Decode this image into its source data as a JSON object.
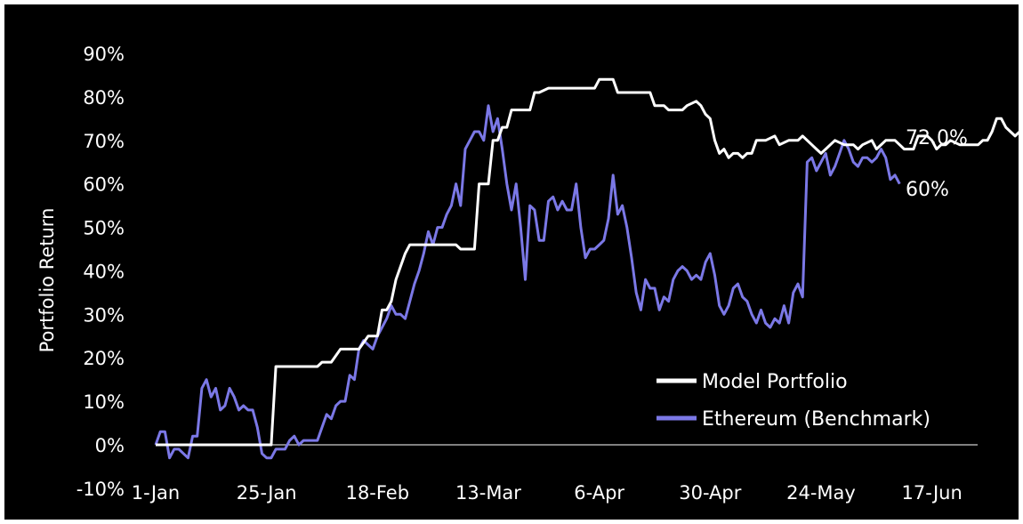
{
  "chart_data": {
    "type": "line",
    "title": "",
    "xlabel": "",
    "ylabel": "Portfolio Return",
    "ylim": [
      -10,
      90
    ],
    "y_ticks": [
      "-10%",
      "0%",
      "10%",
      "20%",
      "30%",
      "40%",
      "50%",
      "60%",
      "70%",
      "80%",
      "90%"
    ],
    "x_ticks": [
      "1-Jan",
      "25-Jan",
      "18-Feb",
      "13-Mar",
      "6-Apr",
      "30-Apr",
      "24-May",
      "17-Jun"
    ],
    "grid": false,
    "legend": "bottom-right",
    "end_labels": {
      "model": "72.0%",
      "ethereum": "60%"
    },
    "colors": {
      "background": "#000000",
      "model": "#ffffff",
      "ethereum": "#7b78e6",
      "axis": "#ffffff"
    },
    "series": [
      {
        "name": "Model Portfolio",
        "points": [
          [
            0,
            0
          ],
          [
            20,
            0
          ],
          [
            25,
            0
          ],
          [
            26,
            18
          ],
          [
            30,
            18
          ],
          [
            35,
            18
          ],
          [
            36,
            19
          ],
          [
            38,
            19
          ],
          [
            40,
            22
          ],
          [
            44,
            22
          ],
          [
            46,
            25
          ],
          [
            48,
            25
          ],
          [
            49,
            31
          ],
          [
            50,
            31
          ],
          [
            51,
            33
          ],
          [
            52,
            38
          ],
          [
            54,
            44
          ],
          [
            55,
            46
          ],
          [
            58,
            46
          ],
          [
            62,
            46
          ],
          [
            65,
            46
          ],
          [
            66,
            45
          ],
          [
            69,
            45
          ],
          [
            70,
            60
          ],
          [
            72,
            60
          ],
          [
            73,
            70
          ],
          [
            74,
            70
          ],
          [
            75,
            73
          ],
          [
            76,
            73
          ],
          [
            77,
            77
          ],
          [
            78,
            77
          ],
          [
            81,
            77
          ],
          [
            82,
            81
          ],
          [
            83,
            81
          ],
          [
            85,
            82
          ],
          [
            95,
            82
          ],
          [
            96,
            84
          ],
          [
            99,
            84
          ],
          [
            100,
            81
          ],
          [
            107,
            81
          ],
          [
            108,
            78
          ],
          [
            110,
            78
          ],
          [
            111,
            77
          ],
          [
            114,
            77
          ],
          [
            115,
            78
          ],
          [
            117,
            79
          ],
          [
            118,
            78
          ],
          [
            119,
            76
          ],
          [
            120,
            75
          ],
          [
            121,
            70
          ],
          [
            122,
            67
          ],
          [
            123,
            68
          ],
          [
            124,
            66
          ],
          [
            125,
            67
          ],
          [
            126,
            67
          ],
          [
            127,
            66
          ],
          [
            128,
            67
          ],
          [
            129,
            67
          ],
          [
            130,
            70
          ],
          [
            132,
            70
          ],
          [
            134,
            71
          ],
          [
            135,
            69
          ],
          [
            137,
            70
          ],
          [
            139,
            70
          ],
          [
            140,
            71
          ],
          [
            142,
            69
          ],
          [
            143,
            68
          ],
          [
            144,
            67
          ],
          [
            145,
            68
          ],
          [
            146,
            69
          ],
          [
            147,
            70
          ],
          [
            149,
            69
          ],
          [
            151,
            69
          ],
          [
            152,
            68
          ],
          [
            153,
            69
          ],
          [
            155,
            70
          ],
          [
            156,
            68
          ],
          [
            158,
            70
          ],
          [
            160,
            70
          ],
          [
            161,
            69
          ],
          [
            162,
            68
          ],
          [
            164,
            68
          ],
          [
            165,
            71
          ],
          [
            167,
            71
          ],
          [
            168,
            70
          ],
          [
            169,
            68
          ],
          [
            170,
            69
          ],
          [
            171,
            69
          ],
          [
            172,
            70
          ],
          [
            174,
            69
          ],
          [
            176,
            69
          ],
          [
            178,
            69
          ],
          [
            179,
            70
          ],
          [
            180,
            70
          ],
          [
            181,
            72
          ],
          [
            182,
            75
          ],
          [
            183,
            75
          ],
          [
            184,
            73
          ],
          [
            186,
            71
          ],
          [
            187,
            72
          ],
          [
            188,
            72
          ]
        ]
      },
      {
        "name": "Ethereum (Benchmark)",
        "points": [
          [
            0,
            0
          ],
          [
            1,
            3
          ],
          [
            2,
            3
          ],
          [
            3,
            -3
          ],
          [
            4,
            -1
          ],
          [
            5,
            -1
          ],
          [
            6,
            -2
          ],
          [
            7,
            -3
          ],
          [
            8,
            2
          ],
          [
            9,
            2
          ],
          [
            10,
            13
          ],
          [
            11,
            15
          ],
          [
            12,
            11
          ],
          [
            13,
            13
          ],
          [
            14,
            8
          ],
          [
            15,
            9
          ],
          [
            16,
            13
          ],
          [
            17,
            11
          ],
          [
            18,
            8
          ],
          [
            19,
            9
          ],
          [
            20,
            8
          ],
          [
            21,
            8
          ],
          [
            22,
            4
          ],
          [
            23,
            -2
          ],
          [
            24,
            -3
          ],
          [
            25,
            -3
          ],
          [
            26,
            -1
          ],
          [
            27,
            -1
          ],
          [
            28,
            -1
          ],
          [
            29,
            1
          ],
          [
            30,
            2
          ],
          [
            31,
            0
          ],
          [
            32,
            1
          ],
          [
            33,
            1
          ],
          [
            34,
            1
          ],
          [
            35,
            1
          ],
          [
            36,
            4
          ],
          [
            37,
            7
          ],
          [
            38,
            6
          ],
          [
            39,
            9
          ],
          [
            40,
            10
          ],
          [
            41,
            10
          ],
          [
            42,
            16
          ],
          [
            43,
            15
          ],
          [
            44,
            22
          ],
          [
            45,
            24
          ],
          [
            46,
            23
          ],
          [
            47,
            22
          ],
          [
            48,
            25
          ],
          [
            49,
            27
          ],
          [
            50,
            29
          ],
          [
            51,
            32
          ],
          [
            52,
            30
          ],
          [
            53,
            30
          ],
          [
            54,
            29
          ],
          [
            55,
            33
          ],
          [
            56,
            37
          ],
          [
            57,
            40
          ],
          [
            58,
            44
          ],
          [
            59,
            49
          ],
          [
            60,
            46
          ],
          [
            61,
            50
          ],
          [
            62,
            50
          ],
          [
            63,
            53
          ],
          [
            64,
            55
          ],
          [
            65,
            60
          ],
          [
            66,
            55
          ],
          [
            67,
            68
          ],
          [
            68,
            70
          ],
          [
            69,
            72
          ],
          [
            70,
            72
          ],
          [
            71,
            70
          ],
          [
            72,
            78
          ],
          [
            73,
            72
          ],
          [
            74,
            75
          ],
          [
            75,
            68
          ],
          [
            76,
            60
          ],
          [
            77,
            54
          ],
          [
            78,
            60
          ],
          [
            79,
            50
          ],
          [
            80,
            38
          ],
          [
            81,
            55
          ],
          [
            82,
            54
          ],
          [
            83,
            47
          ],
          [
            84,
            47
          ],
          [
            85,
            56
          ],
          [
            86,
            57
          ],
          [
            87,
            54
          ],
          [
            88,
            56
          ],
          [
            89,
            54
          ],
          [
            90,
            54
          ],
          [
            91,
            60
          ],
          [
            92,
            50
          ],
          [
            93,
            43
          ],
          [
            94,
            45
          ],
          [
            95,
            45
          ],
          [
            96,
            46
          ],
          [
            97,
            47
          ],
          [
            98,
            52
          ],
          [
            99,
            62
          ],
          [
            100,
            53
          ],
          [
            101,
            55
          ],
          [
            102,
            50
          ],
          [
            103,
            43
          ],
          [
            104,
            35
          ],
          [
            105,
            31
          ],
          [
            106,
            38
          ],
          [
            107,
            36
          ],
          [
            108,
            36
          ],
          [
            109,
            31
          ],
          [
            110,
            34
          ],
          [
            111,
            33
          ],
          [
            112,
            38
          ],
          [
            113,
            40
          ],
          [
            114,
            41
          ],
          [
            115,
            40
          ],
          [
            116,
            38
          ],
          [
            117,
            39
          ],
          [
            118,
            38
          ],
          [
            119,
            42
          ],
          [
            120,
            44
          ],
          [
            121,
            39
          ],
          [
            122,
            32
          ],
          [
            123,
            30
          ],
          [
            124,
            32
          ],
          [
            125,
            36
          ],
          [
            126,
            37
          ],
          [
            127,
            34
          ],
          [
            128,
            33
          ],
          [
            129,
            30
          ],
          [
            130,
            28
          ],
          [
            131,
            31
          ],
          [
            132,
            28
          ],
          [
            133,
            27
          ],
          [
            134,
            29
          ],
          [
            135,
            28
          ],
          [
            136,
            32
          ],
          [
            137,
            28
          ],
          [
            138,
            35
          ],
          [
            139,
            37
          ],
          [
            140,
            34
          ],
          [
            141,
            65
          ],
          [
            142,
            66
          ],
          [
            143,
            63
          ],
          [
            144,
            65
          ],
          [
            145,
            67
          ],
          [
            146,
            62
          ],
          [
            147,
            64
          ],
          [
            148,
            67
          ],
          [
            149,
            70
          ],
          [
            150,
            68
          ],
          [
            151,
            65
          ],
          [
            152,
            64
          ],
          [
            153,
            66
          ],
          [
            154,
            66
          ],
          [
            155,
            65
          ],
          [
            156,
            66
          ],
          [
            157,
            68
          ],
          [
            158,
            66
          ],
          [
            159,
            61
          ],
          [
            160,
            62
          ],
          [
            161,
            60
          ]
        ]
      }
    ]
  }
}
